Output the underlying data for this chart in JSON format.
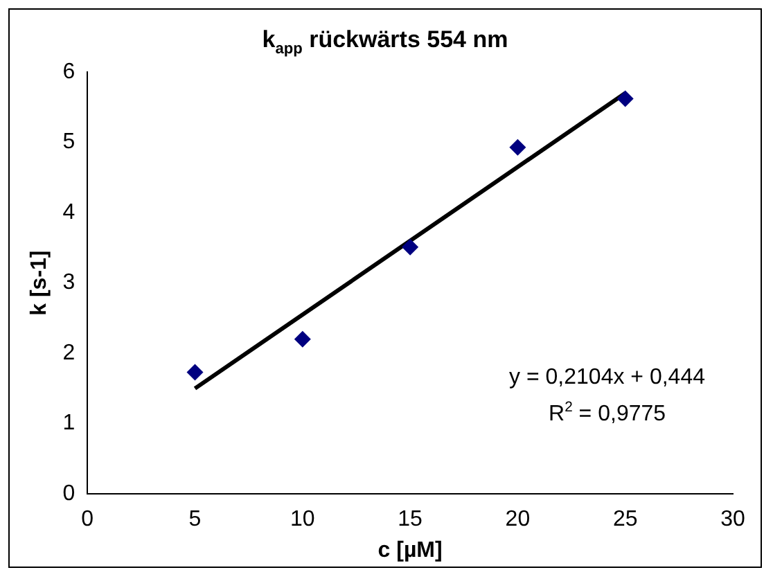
{
  "chart_data": {
    "type": "scatter",
    "title": "k$_{app}$ rückwärts 554 nm",
    "xlabel": "c [µM]",
    "ylabel": "k [s-1]",
    "x": [
      5,
      10,
      15,
      20,
      25
    ],
    "series": [
      {
        "type": "scatter",
        "color": "#000080",
        "marker": "diamond",
        "values": [
          1.73,
          2.2,
          3.51,
          4.93,
          5.62
        ]
      },
      {
        "type": "line",
        "color": "#000000",
        "marker": "none",
        "x": [
          5,
          25
        ],
        "values": [
          1.5,
          5.7
        ]
      }
    ],
    "xlim": [
      0,
      30
    ],
    "xticks": [
      0,
      5,
      10,
      15,
      20,
      25,
      30
    ],
    "ylim": [
      0,
      6
    ],
    "yticks": [
      0,
      1,
      2,
      3,
      4,
      5,
      6
    ],
    "grid": false,
    "legend": false,
    "annotations": [
      "y = 0,2104x + 0,444",
      "R$^{2}$ = 0,9775"
    ]
  }
}
